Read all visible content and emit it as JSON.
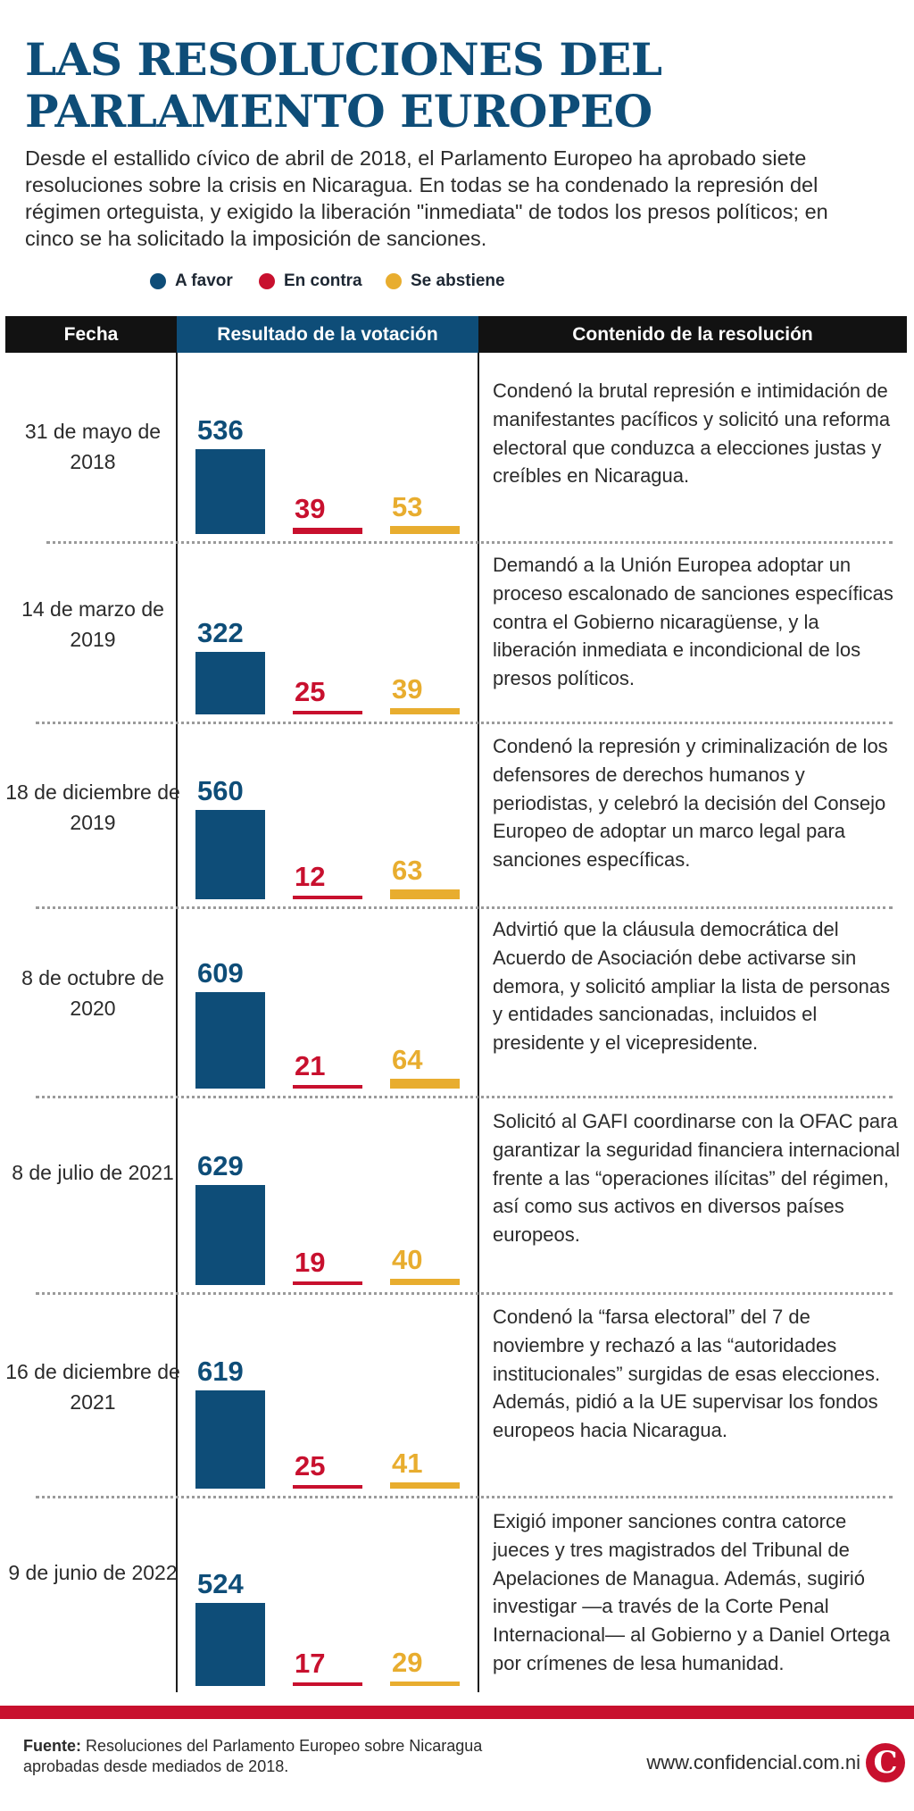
{
  "title": "LAS RESOLUCIONES DEL PARLAMENTO EUROPEO",
  "subtitle": "Desde el estallido cívico de abril de 2018, el Parlamento Europeo ha aprobado siete resoluciones sobre la crisis en Nicaragua. En todas se ha condenado la represión del régimen orteguista, y exigido la liberación \"inmediata\" de todos los presos políticos; en cinco se ha solicitado la imposición de sanciones.",
  "legend": [
    {
      "label": "A favor",
      "color": "#0e4d78"
    },
    {
      "label": "En contra",
      "color": "#c8102e"
    },
    {
      "label": "Se abstiene",
      "color": "#e8ad2f"
    }
  ],
  "table_header": {
    "date": "Fecha",
    "result": "Resultado de la votación",
    "content": "Contenido de la resolución"
  },
  "chart_data": {
    "type": "bar",
    "series": [
      {
        "name": "A favor",
        "values": [
          536,
          322,
          560,
          609,
          629,
          619,
          524
        ]
      },
      {
        "name": "En contra",
        "values": [
          39,
          25,
          12,
          21,
          19,
          25,
          17
        ]
      },
      {
        "name": "Se abstiene",
        "values": [
          53,
          39,
          63,
          64,
          40,
          41,
          29
        ]
      }
    ],
    "rows": [
      {
        "date": "31 de mayo de 2018",
        "favor": 536,
        "contra": 39,
        "abstiene": 53,
        "content": "Condenó la brutal represión e intimidación de manifestantes pacíficos y solicitó una reforma electoral que conduzca a elecciones justas y creíbles en Nicaragua."
      },
      {
        "date": "14 de marzo de 2019",
        "favor": 322,
        "contra": 25,
        "abstiene": 39,
        "content": "Demandó a la Unión Europea adoptar un proceso escalonado de sanciones específicas contra el Gobierno nicaragüense, y la liberación inmediata e incondicional de los presos políticos."
      },
      {
        "date": "18 de diciembre de 2019",
        "favor": 560,
        "contra": 12,
        "abstiene": 63,
        "content": "Condenó la represión y criminalización de los defensores de derechos humanos y periodistas, y celebró la decisión del Consejo Europeo de adoptar un marco legal para sanciones específicas."
      },
      {
        "date": "8 de octubre de 2020",
        "favor": 609,
        "contra": 21,
        "abstiene": 64,
        "content": "Advirtió que la cláusula democrática del Acuerdo de Asociación debe activarse sin demora, y solicitó ampliar la lista de personas y entidades sancionadas, incluidos el presidente y el vicepresidente."
      },
      {
        "date": "8 de julio de 2021",
        "favor": 629,
        "contra": 19,
        "abstiene": 40,
        "content": "Solicitó al GAFI coordinarse con la OFAC para garantizar la seguridad financiera internacional frente a las “operaciones ilícitas” del régimen, así como sus activos en diversos países europeos."
      },
      {
        "date": "16 de diciembre de 2021",
        "favor": 619,
        "contra": 25,
        "abstiene": 41,
        "content": "Condenó la “farsa electoral” del 7 de noviembre y rechazó a las “autoridades institucionales” surgidas de esas elecciones. Además, pidió a la UE supervisar los fondos europeos hacia Nicaragua."
      },
      {
        "date": "9 de junio de 2022",
        "favor": 524,
        "contra": 17,
        "abstiene": 29,
        "content": "Exigió imponer sanciones contra catorce jueces y tres magistrados del Tribunal de Apelaciones de Managua. Además, sugirió investigar —a través de la Corte Penal Internacional— al Gobierno y a Daniel Ortega por crímenes de lesa humanidad."
      }
    ]
  },
  "footer": {
    "source_label": "Fuente:",
    "source_text": "Resoluciones del Parlamento Europeo sobre Nicaragua aprobadas desde mediados de 2018.",
    "site": "www.confidencial.com.ni",
    "logo_letter": "C"
  }
}
